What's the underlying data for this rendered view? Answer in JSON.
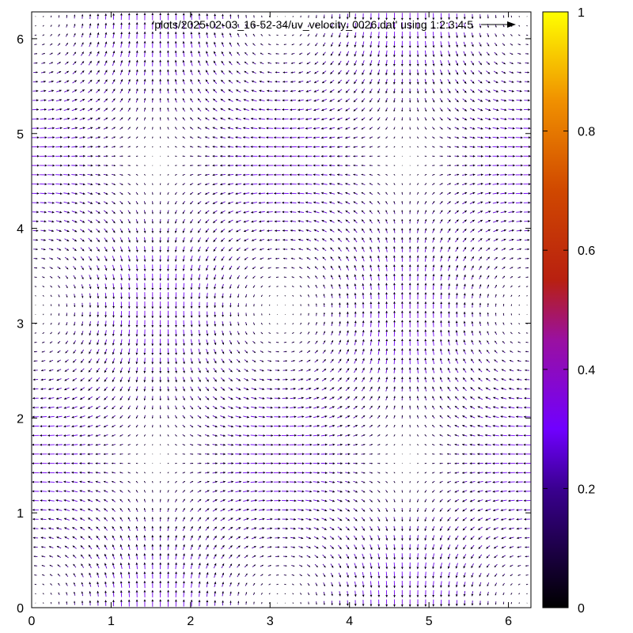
{
  "chart_data": {
    "type": "vector-field",
    "legend": {
      "entries": [
        "'plots/2025-02-03_16-52-34/uv_velocity_0026.dat' using 1:2:3:4:5"
      ],
      "placement": "top-center"
    },
    "x_ticks": [
      "0",
      "1",
      "2",
      "3",
      "4",
      "5",
      "6"
    ],
    "y_ticks": [
      "0",
      "1",
      "2",
      "3",
      "4",
      "5",
      "6"
    ],
    "xlim": [
      0,
      6.283
    ],
    "ylim": [
      0,
      6.283
    ],
    "field": {
      "grid_n": 64,
      "u": "-cos(x)*sin(y)",
      "v": "sin(x)*cos(y)"
    },
    "colorbar": {
      "range": [
        0,
        1
      ],
      "ticks": [
        "0",
        "0.2",
        "0.4",
        "0.6",
        "0.8",
        "1"
      ],
      "palette": [
        "#000000",
        "#7000ff",
        "#b01010",
        "#e06000",
        "#ffff00"
      ]
    },
    "grid": false
  }
}
